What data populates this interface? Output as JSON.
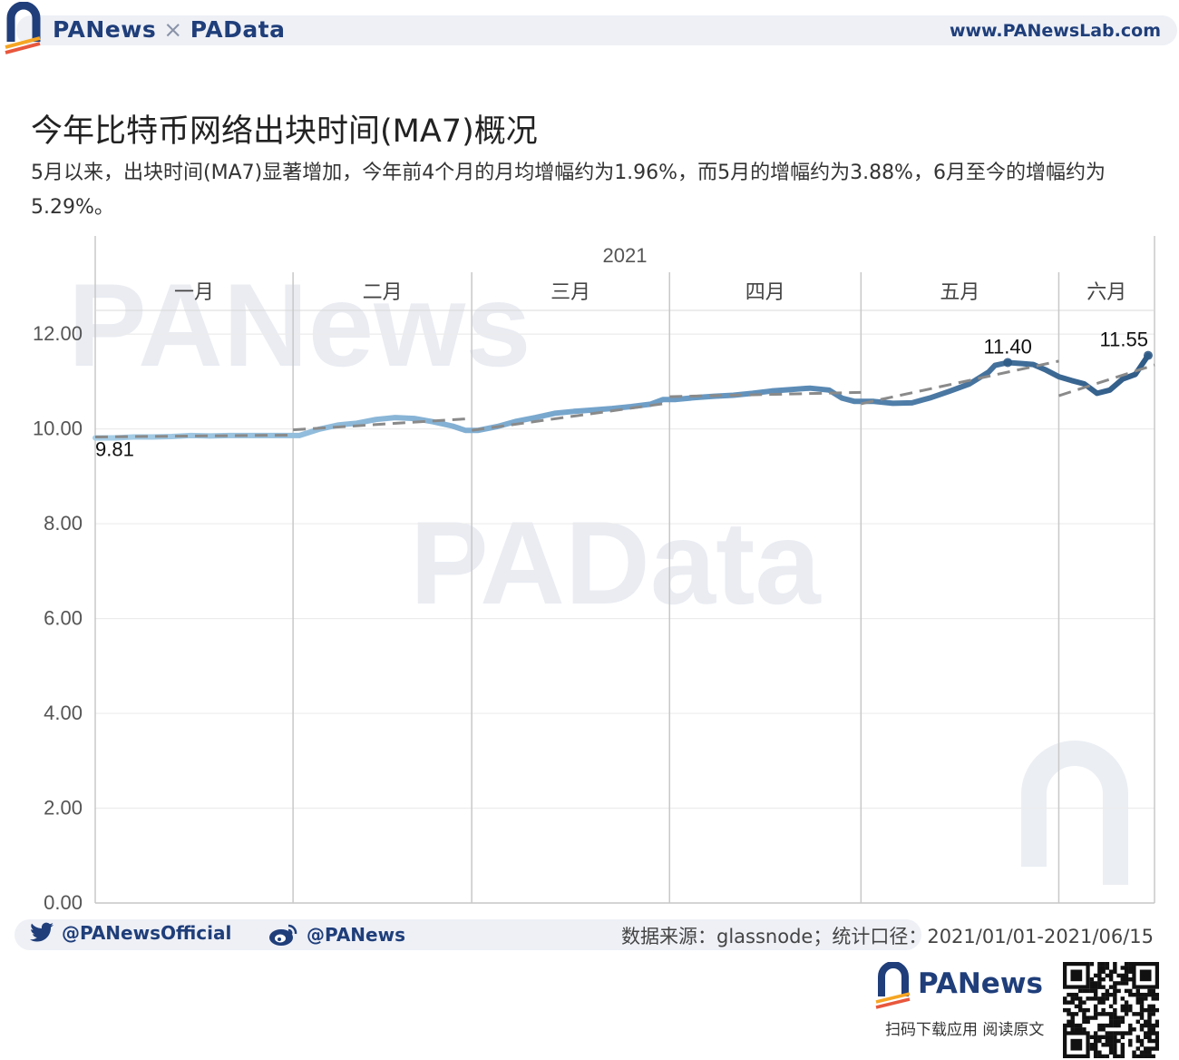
{
  "header": {
    "brand_left": "PANews",
    "brand_sep": "×",
    "brand_right": "PAData",
    "url": "www.PANewsLab.com"
  },
  "title": "今年比特币网络出块时间(MA7)概况",
  "subtitle": "5月以来，出块时间(MA7)显著增加，今年前4个月的月均增幅约为1.96%，而5月的增幅约为3.88%，6月至今的增幅约为5.29%。",
  "watermark": {
    "top": "PANews",
    "middle": "PAData"
  },
  "chart_data": {
    "type": "line",
    "year_label": "2021",
    "months": [
      {
        "label": "一月",
        "start": 0,
        "end": 31
      },
      {
        "label": "二月",
        "start": 31,
        "end": 59
      },
      {
        "label": "三月",
        "start": 59,
        "end": 90
      },
      {
        "label": "四月",
        "start": 90,
        "end": 120
      },
      {
        "label": "五月",
        "start": 120,
        "end": 151
      },
      {
        "label": "六月",
        "start": 151,
        "end": 166
      }
    ],
    "x_days": [
      0,
      3,
      6,
      9,
      12,
      15,
      18,
      21,
      24,
      27,
      30,
      32,
      35,
      38,
      41,
      44,
      47,
      50,
      53,
      56,
      58,
      60,
      63,
      66,
      69,
      72,
      75,
      78,
      81,
      84,
      87,
      89,
      91,
      94,
      97,
      100,
      103,
      106,
      109,
      112,
      115,
      117,
      119,
      122,
      125,
      128,
      131,
      134,
      137,
      140,
      141,
      143,
      145,
      147,
      149,
      151,
      153,
      155,
      157,
      159,
      161,
      163,
      165
    ],
    "y_values": [
      9.81,
      9.81,
      9.83,
      9.83,
      9.84,
      9.86,
      9.85,
      9.86,
      9.86,
      9.86,
      9.86,
      9.86,
      9.99,
      10.08,
      10.12,
      10.2,
      10.24,
      10.22,
      10.15,
      10.06,
      9.97,
      9.97,
      10.05,
      10.16,
      10.24,
      10.33,
      10.37,
      10.4,
      10.43,
      10.47,
      10.52,
      10.62,
      10.62,
      10.66,
      10.69,
      10.71,
      10.75,
      10.8,
      10.83,
      10.86,
      10.82,
      10.65,
      10.58,
      10.58,
      10.54,
      10.55,
      10.66,
      10.8,
      10.95,
      11.2,
      11.34,
      11.4,
      11.38,
      11.36,
      11.24,
      11.1,
      11.02,
      10.95,
      10.75,
      10.82,
      11.05,
      11.15,
      11.55
    ],
    "trend_lines": [
      {
        "x": [
          0,
          31
        ],
        "y": [
          9.83,
          9.87
        ]
      },
      {
        "x": [
          31,
          59
        ],
        "y": [
          9.98,
          10.22
        ]
      },
      {
        "x": [
          59,
          90
        ],
        "y": [
          9.97,
          10.55
        ]
      },
      {
        "x": [
          90,
          120
        ],
        "y": [
          10.68,
          10.77
        ]
      },
      {
        "x": [
          120,
          151
        ],
        "y": [
          10.53,
          11.43
        ]
      },
      {
        "x": [
          151,
          166
        ],
        "y": [
          10.7,
          11.35
        ]
      }
    ],
    "ylim": [
      0,
      12.5
    ],
    "yticks": [
      0,
      2,
      4,
      6,
      8,
      10,
      12
    ],
    "ytick_labels": [
      "0.00",
      "2.00",
      "4.00",
      "6.00",
      "8.00",
      "10.00",
      "12.00"
    ],
    "xlim": [
      0,
      166
    ],
    "annotations": [
      {
        "text": "9.81",
        "x": 0,
        "y": 9.81,
        "anchor": "start"
      },
      {
        "text": "11.40",
        "x": 143,
        "y": 11.4,
        "anchor": "middle"
      },
      {
        "text": "11.55",
        "x": 165,
        "y": 11.55,
        "anchor": "end"
      }
    ],
    "line_colors": [
      "#a8cfe8",
      "#2f5a86"
    ],
    "trend_color": "#8a8a8a",
    "grid": true
  },
  "footer": {
    "twitter": "@PANewsOfficial",
    "weibo": "@PANews",
    "source": "数据来源：glassnode；统计口径：2021/01/01-2021/06/15",
    "brand": "PANews",
    "caption": "扫码下载应用  阅读原文"
  }
}
